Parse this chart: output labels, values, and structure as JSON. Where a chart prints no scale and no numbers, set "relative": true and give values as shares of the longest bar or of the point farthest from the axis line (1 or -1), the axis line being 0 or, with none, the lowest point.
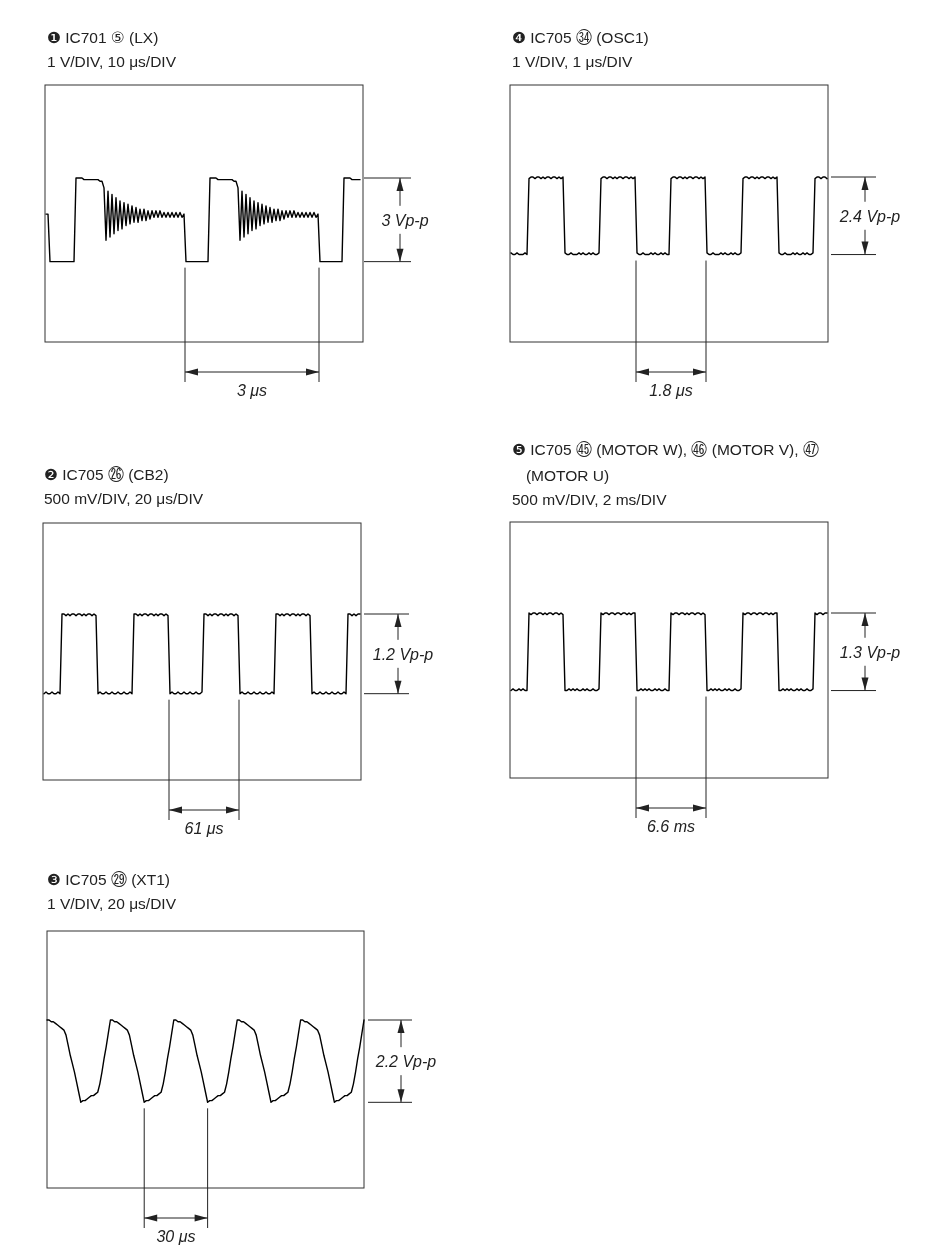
{
  "chart_data": [
    {
      "type": "line",
      "relative": true,
      "color": "#000000",
      "title": "❶ IC701 ⑤ (LX)",
      "subtitle": "1 V/DIV, 10 μs/DIV",
      "annotations": [
        "3 Vp-p",
        "3 μs"
      ],
      "categories": [
        null,
        null,
        null,
        null,
        null,
        null,
        null,
        null,
        null,
        null,
        null,
        null,
        null,
        null,
        null,
        null,
        null,
        null,
        null,
        null,
        null,
        null,
        null,
        null,
        null,
        null,
        null,
        null,
        null,
        null,
        null,
        null,
        null,
        null,
        null,
        null,
        null,
        null,
        null,
        null,
        null,
        null,
        null,
        null,
        null,
        null,
        null,
        null,
        null,
        null,
        null,
        null,
        null,
        null,
        null,
        null,
        null,
        null,
        null,
        null,
        null,
        null,
        null,
        null,
        null,
        null,
        null,
        null,
        null,
        null,
        null,
        null,
        null,
        null,
        null,
        null,
        null,
        null,
        null,
        null,
        null,
        null,
        null,
        null,
        null,
        null,
        null,
        null,
        null,
        null,
        null,
        null,
        null,
        null,
        null,
        null,
        null,
        null,
        null,
        null,
        null,
        null,
        null,
        null,
        null,
        null,
        null,
        null,
        null,
        null,
        null,
        null,
        null,
        null,
        null,
        null,
        null,
        null,
        null,
        null,
        null,
        null,
        null,
        null,
        null,
        null,
        null,
        null,
        null,
        null,
        null,
        null,
        null,
        null,
        null,
        null,
        null,
        null,
        null,
        null,
        null,
        null,
        null,
        null,
        null,
        null,
        null,
        null,
        null,
        null,
        null,
        null,
        null,
        null,
        null,
        null,
        null,
        null
      ],
      "values": [
        0.78,
        0.78,
        0.49,
        0.49,
        0.49,
        0.49,
        0.49,
        0.49,
        0.49,
        0.49,
        0.49,
        0.49,
        0.49,
        0.49,
        0.49,
        1,
        1,
        1,
        1,
        0.99,
        0.99,
        0.99,
        0.99,
        0.99,
        0.99,
        0.99,
        0.99,
        0.98,
        0.98,
        0.94,
        0.62,
        0.92,
        0.64,
        0.9,
        0.66,
        0.88,
        0.68,
        0.86,
        0.69,
        0.85,
        0.71,
        0.84,
        0.72,
        0.83,
        0.73,
        0.82,
        0.73,
        0.81,
        0.74,
        0.81,
        0.74,
        0.8,
        0.75,
        0.8,
        0.76,
        0.8,
        0.76,
        0.8,
        0.76,
        0.79,
        0.76,
        0.79,
        0.76,
        0.79,
        0.76,
        0.79,
        0.76,
        0.79,
        0.76,
        0.78,
        0.49,
        0.49,
        0.49,
        0.49,
        0.49,
        0.49,
        0.49,
        0.49,
        0.49,
        0.49,
        0.49,
        0.49,
        1,
        1,
        1,
        1,
        0.99,
        0.99,
        0.99,
        0.99,
        0.99,
        0.99,
        0.99,
        0.99,
        0.98,
        0.98,
        0.94,
        0.62,
        0.92,
        0.64,
        0.9,
        0.66,
        0.88,
        0.68,
        0.86,
        0.69,
        0.85,
        0.71,
        0.84,
        0.72,
        0.83,
        0.73,
        0.82,
        0.73,
        0.81,
        0.74,
        0.81,
        0.74,
        0.8,
        0.75,
        0.8,
        0.76,
        0.8,
        0.76,
        0.8,
        0.76,
        0.79,
        0.76,
        0.79,
        0.76,
        0.79,
        0.76,
        0.79,
        0.76,
        0.79,
        0.76,
        0.78,
        0.49,
        0.49,
        0.49,
        0.49,
        0.49,
        0.49,
        0.49,
        0.49,
        0.49,
        0.49,
        0.49,
        0.49,
        1,
        1,
        1,
        1,
        0.99,
        0.99,
        0.99,
        0.99,
        0.99
      ]
    },
    {
      "type": "line",
      "relative": true,
      "color": "#000000",
      "title": "❹ IC705 ㉞ (OSC1)",
      "subtitle": "1 V/DIV, 1 μs/DIV",
      "annotations": [
        "2.4 Vp-p",
        "1.8 μs"
      ],
      "categories": [
        null,
        null,
        null,
        null,
        null,
        null,
        null,
        null,
        null,
        null,
        null,
        null,
        null,
        null,
        null,
        null,
        null,
        null,
        null,
        null,
        null,
        null,
        null,
        null,
        null,
        null,
        null,
        null,
        null,
        null,
        null,
        null,
        null,
        null,
        null,
        null,
        null,
        null,
        null,
        null,
        null,
        null,
        null,
        null,
        null,
        null,
        null,
        null,
        null,
        null,
        null,
        null,
        null,
        null,
        null,
        null,
        null,
        null,
        null,
        null,
        null,
        null,
        null,
        null,
        null,
        null,
        null,
        null,
        null,
        null,
        null,
        null,
        null,
        null,
        null,
        null,
        null,
        null,
        null,
        null,
        null,
        null,
        null,
        null,
        null,
        null,
        null,
        null,
        null,
        null,
        null,
        null,
        null,
        null,
        null,
        null,
        null,
        null,
        null,
        null,
        null,
        null,
        null,
        null,
        null,
        null,
        null,
        null,
        null,
        null,
        null,
        null,
        null,
        null,
        null,
        null,
        null,
        null,
        null,
        null,
        null,
        null,
        null,
        null,
        null,
        null,
        null,
        null,
        null,
        null,
        null,
        null,
        null,
        null,
        null,
        null,
        null,
        null,
        null,
        null,
        null,
        null,
        null,
        null,
        null,
        null,
        null,
        null,
        null,
        null,
        null,
        null,
        null,
        null,
        null,
        null,
        null,
        null,
        null
      ],
      "values": [
        0.54,
        0.53,
        0.53,
        0.54,
        0.53,
        0.53,
        0.53,
        0.54,
        0.53,
        0.99,
        1,
        1,
        0.99,
        1,
        1,
        0.99,
        1,
        0.99,
        1,
        1,
        0.99,
        1,
        1,
        0.99,
        1,
        0.99,
        1,
        0.54,
        0.53,
        0.53,
        0.54,
        0.53,
        0.53,
        0.53,
        0.54,
        0.53,
        0.54,
        0.53,
        0.53,
        0.54,
        0.53,
        0.54,
        0.53,
        0.53,
        0.54,
        0.99,
        1,
        1,
        0.99,
        1,
        1,
        0.99,
        1,
        0.99,
        1,
        1,
        0.99,
        1,
        1,
        0.99,
        1,
        0.99,
        1,
        0.54,
        0.53,
        0.53,
        0.54,
        0.53,
        0.53,
        0.53,
        0.54,
        0.53,
        0.54,
        0.53,
        0.53,
        0.54,
        0.53,
        0.54,
        0.53,
        0.53,
        0.99,
        1,
        1,
        0.99,
        1,
        1,
        0.99,
        1,
        0.99,
        1,
        1,
        0.99,
        1,
        1,
        0.99,
        1,
        0.99,
        1,
        0.54,
        0.53,
        0.53,
        0.54,
        0.53,
        0.53,
        0.53,
        0.54,
        0.53,
        0.54,
        0.53,
        0.53,
        0.54,
        0.53,
        0.54,
        0.53,
        0.53,
        0.54,
        0.99,
        1,
        1,
        0.99,
        1,
        1,
        0.99,
        1,
        0.99,
        1,
        1,
        0.99,
        1,
        1,
        0.99,
        1,
        0.99,
        1,
        0.54,
        0.53,
        0.53,
        0.54,
        0.53,
        0.53,
        0.53,
        0.54,
        0.53,
        0.54,
        0.53,
        0.53,
        0.54,
        0.53,
        0.54,
        0.53,
        0.53,
        0.54,
        0.99,
        1,
        1,
        0.99,
        1,
        1,
        0.99
      ]
    },
    {
      "type": "line",
      "relative": true,
      "color": "#000000",
      "title": "❷ IC705 ㉖ (CB2)",
      "subtitle": "500 mV/DIV, 20 μs/DIV",
      "annotations": [
        "1.2 Vp-p",
        "61 μs"
      ],
      "categories": [
        null,
        null,
        null,
        null,
        null,
        null,
        null,
        null,
        null,
        null,
        null,
        null,
        null,
        null,
        null,
        null,
        null,
        null,
        null,
        null,
        null,
        null,
        null,
        null,
        null,
        null,
        null,
        null,
        null,
        null,
        null,
        null,
        null,
        null,
        null,
        null,
        null,
        null,
        null,
        null,
        null,
        null,
        null,
        null,
        null,
        null,
        null,
        null,
        null,
        null,
        null,
        null,
        null,
        null,
        null,
        null,
        null,
        null,
        null,
        null,
        null,
        null,
        null,
        null,
        null,
        null,
        null,
        null,
        null,
        null,
        null,
        null,
        null,
        null,
        null,
        null,
        null,
        null,
        null,
        null,
        null,
        null,
        null,
        null,
        null,
        null,
        null,
        null,
        null,
        null,
        null,
        null,
        null,
        null,
        null,
        null,
        null,
        null,
        null,
        null,
        null,
        null,
        null,
        null,
        null,
        null,
        null,
        null,
        null,
        null,
        null,
        null,
        null,
        null,
        null,
        null,
        null,
        null,
        null,
        null,
        null,
        null,
        null,
        null,
        null,
        null,
        null,
        null,
        null,
        null,
        null,
        null,
        null,
        null,
        null,
        null,
        null,
        null,
        null,
        null,
        null,
        null,
        null,
        null,
        null,
        null,
        null,
        null,
        null,
        null,
        null,
        null,
        null,
        null,
        null,
        null,
        null,
        null,
        null
      ],
      "values": [
        0.52,
        0.53,
        0.52,
        0.52,
        0.53,
        0.52,
        0.52,
        0.53,
        0.52,
        1,
        1,
        0.99,
        1,
        0.99,
        1,
        1,
        0.99,
        1,
        1,
        0.99,
        1,
        0.99,
        1,
        1,
        0.99,
        1,
        0.99,
        0.52,
        0.53,
        0.52,
        0.52,
        0.53,
        0.52,
        0.52,
        0.53,
        0.52,
        0.52,
        0.53,
        0.52,
        0.52,
        0.53,
        0.52,
        0.52,
        0.53,
        0.52,
        1,
        1,
        0.99,
        1,
        0.99,
        1,
        1,
        0.99,
        1,
        1,
        0.99,
        1,
        0.99,
        1,
        1,
        0.99,
        1,
        0.99,
        0.52,
        0.53,
        0.52,
        0.52,
        0.53,
        0.52,
        0.52,
        0.53,
        0.52,
        0.52,
        0.53,
        0.52,
        0.52,
        0.53,
        0.52,
        0.52,
        0.53,
        1,
        1,
        0.99,
        1,
        0.99,
        1,
        1,
        0.99,
        1,
        1,
        0.99,
        1,
        0.99,
        1,
        1,
        0.99,
        1,
        0.99,
        0.52,
        0.53,
        0.52,
        0.52,
        0.53,
        0.52,
        0.52,
        0.53,
        0.52,
        0.52,
        0.53,
        0.52,
        0.52,
        0.53,
        0.52,
        0.52,
        0.53,
        0.52,
        1,
        1,
        0.99,
        1,
        0.99,
        1,
        1,
        0.99,
        1,
        1,
        0.99,
        1,
        0.99,
        1,
        1,
        0.99,
        1,
        0.99,
        0.52,
        0.53,
        0.52,
        0.52,
        0.53,
        0.52,
        0.52,
        0.53,
        0.52,
        0.52,
        0.53,
        0.52,
        0.52,
        0.53,
        0.52,
        0.52,
        0.53,
        0.52,
        1,
        1,
        0.99,
        1,
        0.99,
        1,
        1
      ]
    },
    {
      "type": "line",
      "relative": true,
      "color": "#000000",
      "title": "❺ IC705 ㊺ (MOTOR W), ㊻ (MOTOR V), ㊼ (MOTOR U)",
      "subtitle": "500 mV/DIV, 2 ms/DIV",
      "annotations": [
        "1.3 Vp-p",
        "6.6 ms"
      ],
      "categories": [
        null,
        null,
        null,
        null,
        null,
        null,
        null,
        null,
        null,
        null,
        null,
        null,
        null,
        null,
        null,
        null,
        null,
        null,
        null,
        null,
        null,
        null,
        null,
        null,
        null,
        null,
        null,
        null,
        null,
        null,
        null,
        null,
        null,
        null,
        null,
        null,
        null,
        null,
        null,
        null,
        null,
        null,
        null,
        null,
        null,
        null,
        null,
        null,
        null,
        null,
        null,
        null,
        null,
        null,
        null,
        null,
        null,
        null,
        null,
        null,
        null,
        null,
        null,
        null,
        null,
        null,
        null,
        null,
        null,
        null,
        null,
        null,
        null,
        null,
        null,
        null,
        null,
        null,
        null,
        null,
        null,
        null,
        null,
        null,
        null,
        null,
        null,
        null,
        null,
        null,
        null,
        null,
        null,
        null,
        null,
        null,
        null,
        null,
        null,
        null,
        null,
        null,
        null,
        null,
        null,
        null,
        null,
        null,
        null,
        null,
        null,
        null,
        null,
        null,
        null,
        null,
        null,
        null,
        null,
        null,
        null,
        null,
        null,
        null,
        null,
        null,
        null,
        null,
        null,
        null,
        null,
        null,
        null,
        null,
        null,
        null,
        null,
        null,
        null,
        null,
        null,
        null,
        null,
        null,
        null,
        null,
        null,
        null,
        null,
        null,
        null,
        null,
        null,
        null,
        null,
        null,
        null,
        null,
        null
      ],
      "values": [
        0.53,
        0.54,
        0.53,
        0.53,
        0.54,
        0.53,
        0.54,
        0.53,
        0.53,
        1,
        0.99,
        1,
        1,
        0.99,
        1,
        1,
        0.99,
        1,
        0.99,
        1,
        1,
        0.99,
        1,
        1,
        0.99,
        1,
        0.99,
        0.53,
        0.53,
        0.54,
        0.53,
        0.54,
        0.53,
        0.54,
        0.53,
        0.53,
        0.54,
        0.53,
        0.54,
        0.53,
        0.53,
        0.54,
        0.53,
        0.53,
        0.54,
        1,
        0.99,
        1,
        1,
        0.99,
        1,
        1,
        0.99,
        1,
        1,
        0.99,
        1,
        1,
        0.99,
        1,
        0.99,
        1,
        1,
        0.53,
        0.53,
        0.54,
        0.53,
        0.54,
        0.53,
        0.54,
        0.53,
        0.53,
        0.54,
        0.53,
        0.54,
        0.53,
        0.53,
        0.54,
        0.53,
        0.53,
        1,
        0.99,
        1,
        1,
        0.99,
        1,
        1,
        0.99,
        1,
        0.99,
        1,
        1,
        0.99,
        1,
        1,
        0.99,
        1,
        0.99,
        0.53,
        0.53,
        0.54,
        0.53,
        0.54,
        0.53,
        0.54,
        0.53,
        0.53,
        0.54,
        0.53,
        0.54,
        0.53,
        0.53,
        0.54,
        0.53,
        0.53,
        0.54,
        1,
        0.99,
        1,
        1,
        0.99,
        1,
        1,
        0.99,
        1,
        1,
        0.99,
        1,
        1,
        0.99,
        1,
        0.99,
        1,
        1,
        0.53,
        0.53,
        0.54,
        0.53,
        0.54,
        0.53,
        0.54,
        0.53,
        0.53,
        0.54,
        0.53,
        0.54,
        0.53,
        0.53,
        0.54,
        0.53,
        0.53,
        0.54,
        1,
        0.99,
        1,
        1,
        0.99,
        1,
        1
      ]
    },
    {
      "type": "line",
      "relative": true,
      "color": "#000000",
      "title": "❸ IC705 ㉙ (XT1)",
      "subtitle": "1 V/DIV, 20 μs/DIV",
      "annotations": [
        "2.2 Vp-p",
        "30 μs"
      ],
      "categories": [
        null,
        null,
        null,
        null,
        null,
        null,
        null,
        null,
        null,
        null,
        null,
        null,
        null,
        null,
        null,
        null,
        null,
        null,
        null,
        null,
        null,
        null,
        null,
        null,
        null,
        null,
        null,
        null,
        null,
        null,
        null,
        null,
        null,
        null,
        null,
        null,
        null,
        null,
        null,
        null,
        null,
        null,
        null,
        null,
        null,
        null,
        null,
        null,
        null,
        null,
        null,
        null,
        null,
        null,
        null,
        null,
        null,
        null,
        null,
        null,
        null,
        null,
        null,
        null,
        null,
        null,
        null,
        null,
        null,
        null,
        null,
        null,
        null,
        null,
        null,
        null,
        null,
        null,
        null,
        null,
        null,
        null,
        null,
        null,
        null,
        null,
        null,
        null,
        null,
        null,
        null,
        null,
        null,
        null,
        null,
        null,
        null,
        null,
        null,
        null,
        null,
        null,
        null,
        null,
        null,
        null,
        null,
        null,
        null,
        null,
        null,
        null,
        null,
        null,
        null,
        null,
        null,
        null,
        null,
        null,
        null,
        null,
        null,
        null,
        null,
        null,
        null,
        null,
        null,
        null,
        null,
        null,
        null,
        null,
        null,
        null,
        null,
        null,
        null,
        null,
        null,
        null,
        null,
        null,
        null,
        null,
        null,
        null,
        null,
        null,
        null
      ],
      "values": [
        1,
        1,
        0.99,
        0.99,
        0.98,
        0.97,
        0.96,
        0.95,
        0.94,
        0.91,
        0.85,
        0.79,
        0.74,
        0.69,
        0.63,
        0.57,
        0.51,
        0.52,
        0.52,
        0.53,
        0.54,
        0.55,
        0.55,
        0.56,
        0.57,
        0.62,
        0.69,
        0.77,
        0.84,
        0.92,
        1,
        1,
        0.99,
        0.99,
        0.98,
        0.97,
        0.96,
        0.95,
        0.94,
        0.91,
        0.85,
        0.79,
        0.74,
        0.69,
        0.63,
        0.57,
        0.51,
        0.52,
        0.52,
        0.53,
        0.54,
        0.55,
        0.55,
        0.56,
        0.57,
        0.62,
        0.69,
        0.77,
        0.84,
        0.92,
        1,
        1,
        0.99,
        0.99,
        0.98,
        0.97,
        0.96,
        0.95,
        0.94,
        0.91,
        0.85,
        0.79,
        0.74,
        0.69,
        0.63,
        0.57,
        0.51,
        0.52,
        0.52,
        0.53,
        0.54,
        0.55,
        0.55,
        0.56,
        0.57,
        0.62,
        0.69,
        0.77,
        0.84,
        0.92,
        1,
        1,
        0.99,
        0.99,
        0.98,
        0.97,
        0.96,
        0.95,
        0.94,
        0.91,
        0.85,
        0.79,
        0.74,
        0.69,
        0.63,
        0.57,
        0.51,
        0.52,
        0.52,
        0.53,
        0.54,
        0.55,
        0.55,
        0.56,
        0.57,
        0.62,
        0.69,
        0.77,
        0.84,
        0.92,
        1,
        1,
        0.99,
        0.99,
        0.98,
        0.97,
        0.96,
        0.95,
        0.94,
        0.91,
        0.85,
        0.79,
        0.74,
        0.69,
        0.63,
        0.57,
        0.51,
        0.52,
        0.52,
        0.53,
        0.54,
        0.55,
        0.55,
        0.56,
        0.57,
        0.62,
        0.69,
        0.77,
        0.84,
        0.92,
        1
      ]
    }
  ]
}
